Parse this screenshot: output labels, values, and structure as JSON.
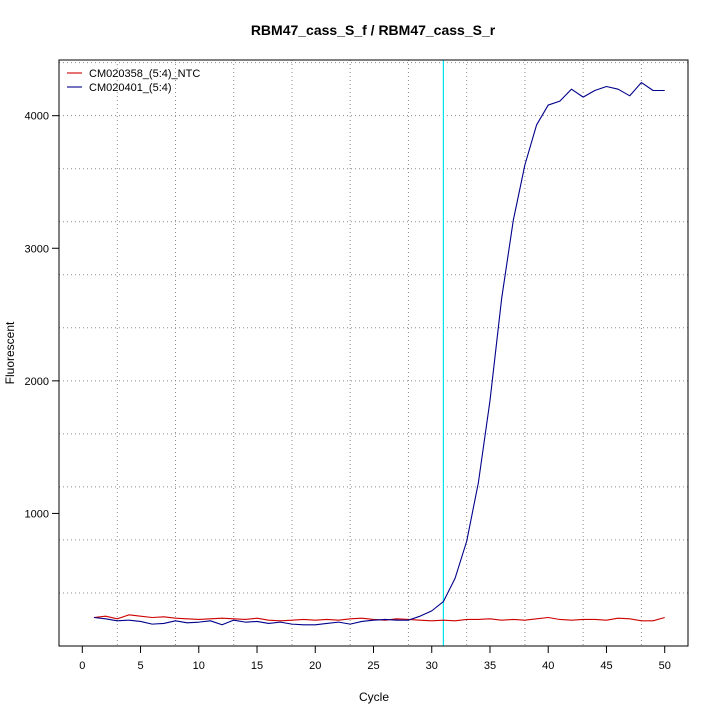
{
  "chart_data": {
    "type": "line",
    "title": "RBM47_cass_S_f / RBM47_cass_S_r",
    "xlabel": "Cycle",
    "ylabel": "Fluorescent",
    "xlim": [
      -2,
      52
    ],
    "ylim": [
      0,
      4420
    ],
    "xticks": [
      0,
      5,
      10,
      15,
      20,
      25,
      30,
      35,
      40,
      45,
      50
    ],
    "yticks": [
      1000,
      2000,
      3000,
      4000
    ],
    "grid": true,
    "grid_x": [
      3,
      8,
      13,
      18,
      23,
      28,
      33,
      38,
      43,
      48
    ],
    "grid_y": [
      400,
      800,
      1200,
      1600,
      2000,
      2400,
      2800,
      3200,
      3600,
      4000,
      4400
    ],
    "threshold": {
      "x": 31,
      "color": "#00e5ee"
    },
    "legend_position": "top-left",
    "x": [
      1,
      2,
      3,
      4,
      5,
      6,
      7,
      8,
      9,
      10,
      11,
      12,
      13,
      14,
      15,
      16,
      17,
      18,
      19,
      20,
      21,
      22,
      23,
      24,
      25,
      26,
      27,
      28,
      29,
      30,
      31,
      32,
      33,
      34,
      35,
      36,
      37,
      38,
      39,
      40,
      41,
      42,
      43,
      44,
      45,
      46,
      47,
      48,
      49,
      50
    ],
    "series": [
      {
        "name": "CM020358_(5:4)_NTC",
        "color": "#cd0000",
        "values": [
          215,
          225,
          205,
          235,
          225,
          215,
          220,
          210,
          205,
          200,
          205,
          210,
          205,
          200,
          210,
          195,
          190,
          195,
          200,
          195,
          200,
          195,
          205,
          210,
          200,
          195,
          205,
          200,
          195,
          190,
          195,
          190,
          200,
          200,
          205,
          195,
          200,
          195,
          205,
          215,
          200,
          195,
          200,
          200,
          195,
          210,
          205,
          190,
          190,
          215
        ]
      },
      {
        "name": "CM020401_(5:4)",
        "color": "#00008b",
        "values": [
          215,
          205,
          190,
          195,
          185,
          165,
          170,
          190,
          175,
          180,
          190,
          160,
          195,
          180,
          185,
          170,
          180,
          165,
          160,
          160,
          170,
          180,
          165,
          185,
          195,
          200,
          195,
          195,
          225,
          265,
          335,
          510,
          790,
          1230,
          1850,
          2620,
          3210,
          3630,
          3930,
          4080,
          4110,
          4200,
          4140,
          4190,
          4220,
          4200,
          4150,
          4250,
          4190,
          4190
        ]
      }
    ]
  }
}
